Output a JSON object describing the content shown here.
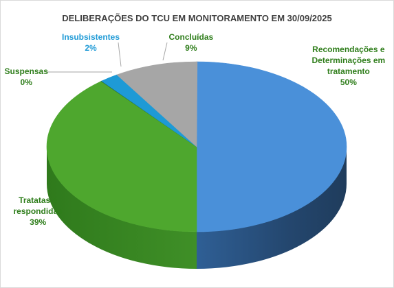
{
  "chart_data": {
    "type": "pie",
    "title": "DELIBERAÇÕES DO TCU EM MONITORAMENTO EM 30/09/2025",
    "slices": [
      {
        "name": "Recomendações  e Determinações em tratamento",
        "lines": [
          "Recomendações  e",
          "Determinações em",
          "tratamento"
        ],
        "value": 50,
        "label": "50%",
        "color": "#4a90d9",
        "label_color": "#2e7d1a"
      },
      {
        "name": "Tratatas e respondidas",
        "lines": [
          "Tratatas e",
          "respondidas"
        ],
        "value": 39,
        "label": "39%",
        "color": "#4ea72e",
        "label_color": "#2e7d1a"
      },
      {
        "name": "Suspensas",
        "lines": [
          "Suspensas"
        ],
        "value": 0,
        "label": "0%",
        "color": "#1f5f2f",
        "label_color": "#2e7d1a"
      },
      {
        "name": "Insubsistentes",
        "lines": [
          "Insubsistentes"
        ],
        "value": 2,
        "label": "2%",
        "color": "#1e9ad6",
        "label_color": "#1e9ad6"
      },
      {
        "name": "Concluídas",
        "lines": [
          "Concluídas"
        ],
        "value": 9,
        "label": "9%",
        "color": "#a6a6a6",
        "label_color": "#2e7d1a"
      }
    ],
    "style": "3d-pie",
    "legend": "none"
  }
}
